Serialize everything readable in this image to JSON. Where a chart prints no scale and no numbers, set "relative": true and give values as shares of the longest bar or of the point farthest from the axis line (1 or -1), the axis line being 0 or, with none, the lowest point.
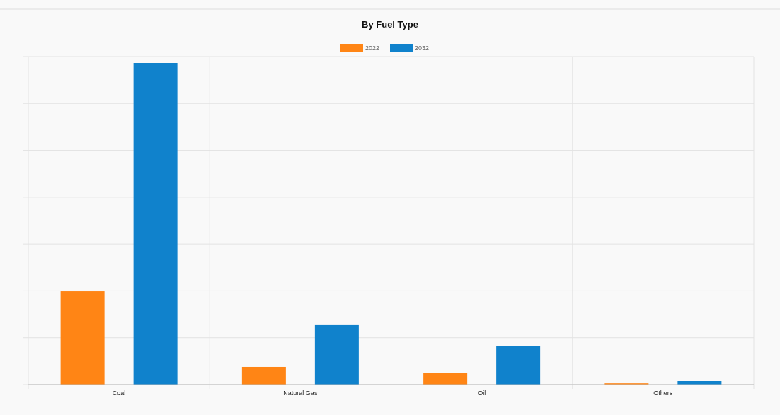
{
  "chart_data": {
    "type": "bar",
    "title": "By Fuel Type",
    "relative": true,
    "categories": [
      "Coal",
      "Natural Gas",
      "Oil",
      "Others"
    ],
    "series": [
      {
        "name": "2022",
        "color": "#ff8515",
        "values": [
          0.29,
          0.055,
          0.037,
          0.004
        ]
      },
      {
        "name": "2032",
        "color": "#1082cc",
        "values": [
          1,
          0.187,
          0.119,
          0.011
        ]
      }
    ],
    "grid": true,
    "legend": "top"
  }
}
